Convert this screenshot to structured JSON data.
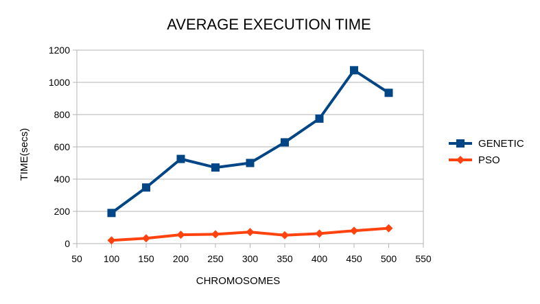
{
  "chart_data": {
    "type": "line",
    "title": "AVERAGE EXECUTION TIME",
    "xlabel": "CHROMOSOMES",
    "ylabel": "TIME(secs)",
    "xlim": [
      50,
      550
    ],
    "ylim": [
      0,
      1200
    ],
    "x_ticks": [
      50,
      100,
      150,
      200,
      250,
      300,
      350,
      400,
      450,
      500,
      550
    ],
    "y_ticks": [
      0,
      200,
      400,
      600,
      800,
      1000,
      1200
    ],
    "grid": "horizontal",
    "legend_position": "right",
    "x": [
      100,
      150,
      200,
      250,
      300,
      350,
      400,
      450,
      500
    ],
    "series": [
      {
        "name": "GENETIC",
        "color": "#004586",
        "marker": "square",
        "values": [
          190,
          348,
          525,
          472,
          500,
          628,
          775,
          1075,
          935
        ]
      },
      {
        "name": "PSO",
        "color": "#ff420e",
        "marker": "diamond",
        "values": [
          20,
          33,
          55,
          58,
          72,
          52,
          62,
          80,
          95
        ]
      }
    ]
  }
}
